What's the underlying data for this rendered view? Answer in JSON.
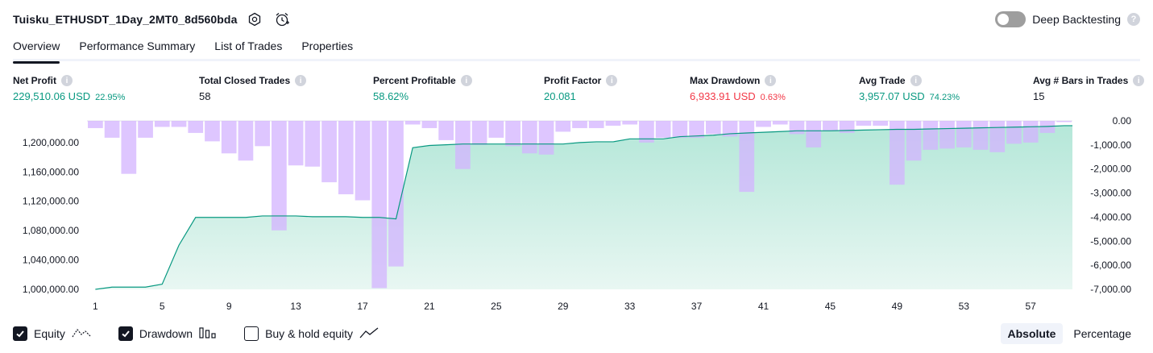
{
  "header": {
    "strategy_name": "Tuisku_ETHUSDT_1Day_2MT0_8d560bda",
    "settings_icon": "settings-icon",
    "alert_icon": "alarm-clock-icon",
    "deep_backtesting_label": "Deep Backtesting",
    "deep_backtesting_on": false
  },
  "tabs": [
    {
      "label": "Overview",
      "active": true
    },
    {
      "label": "Performance Summary",
      "active": false
    },
    {
      "label": "List of Trades",
      "active": false
    },
    {
      "label": "Properties",
      "active": false
    }
  ],
  "metrics": {
    "net_profit": {
      "label": "Net Profit",
      "value": "229,510.06 USD",
      "pct": "22.95%"
    },
    "total_closed_trades": {
      "label": "Total Closed Trades",
      "value": "58"
    },
    "percent_profitable": {
      "label": "Percent Profitable",
      "value": "58.62%"
    },
    "profit_factor": {
      "label": "Profit Factor",
      "value": "20.081"
    },
    "max_drawdown": {
      "label": "Max Drawdown",
      "value": "6,933.91 USD",
      "pct": "0.63%"
    },
    "avg_trade": {
      "label": "Avg Trade",
      "value": "3,957.07 USD",
      "pct": "74.23%"
    },
    "avg_bars": {
      "label": "Avg # Bars in Trades",
      "value": "15"
    }
  },
  "chart_data": {
    "type": "area",
    "x_ticks": [
      1,
      5,
      9,
      13,
      17,
      21,
      25,
      29,
      33,
      37,
      41,
      45,
      49,
      53,
      57
    ],
    "left_axis": {
      "ticks": [
        "1,200,000.00",
        "1,160,000.00",
        "1,120,000.00",
        "1,080,000.00",
        "1,040,000.00",
        "1,000,000.00"
      ],
      "tick_values": [
        1200000,
        1160000,
        1120000,
        1080000,
        1040000,
        1000000
      ],
      "range": [
        1000000,
        1229510
      ]
    },
    "right_axis": {
      "ticks": [
        "0.00",
        "-1,000.00",
        "-2,000.00",
        "-3,000.00",
        "-4,000.00",
        "-5,000.00",
        "-6,000.00",
        "-7,000.00"
      ],
      "tick_values": [
        0,
        -1000,
        -2000,
        -3000,
        -4000,
        -5000,
        -6000,
        -7000
      ],
      "range": [
        -7000,
        0
      ]
    },
    "series": [
      {
        "name": "Equity",
        "color": "#089981",
        "values": [
          1000000,
          1003000,
          1003000,
          1003000,
          1007000,
          1060000,
          1098000,
          1098000,
          1098000,
          1098000,
          1100000,
          1100000,
          1100000,
          1099000,
          1099000,
          1099000,
          1098000,
          1098000,
          1096000,
          1193000,
          1196000,
          1197000,
          1198000,
          1198000,
          1198000,
          1198000,
          1198000,
          1198000,
          1198000,
          1200000,
          1201000,
          1201000,
          1205000,
          1205000,
          1205000,
          1208000,
          1209000,
          1210000,
          1212000,
          1213000,
          1214000,
          1215000,
          1216000,
          1216000,
          1216000,
          1216500,
          1217000,
          1217500,
          1218000,
          1218000,
          1218500,
          1219000,
          1219500,
          1220000,
          1220500,
          1221000,
          1221500,
          1222000,
          1223000
        ]
      },
      {
        "name": "Drawdown",
        "color": "#d9b3ff",
        "values": [
          -300,
          -700,
          -2200,
          -700,
          -250,
          -250,
          -500,
          -850,
          -1350,
          -1650,
          -1050,
          -4550,
          -1850,
          -1900,
          -2550,
          -3050,
          -3300,
          -6950,
          -6050,
          -150,
          -300,
          -800,
          -2000,
          -1000,
          -700,
          -1050,
          -1350,
          -1400,
          -450,
          -300,
          -300,
          -200,
          -150,
          -900,
          -700,
          -700,
          -700,
          -550,
          -650,
          -2950,
          -250,
          -150,
          -550,
          -1100,
          -400,
          -500,
          -200,
          -200,
          -2650,
          -1650,
          -1200,
          -1150,
          -1100,
          -1200,
          -1300,
          -950,
          -900,
          -500,
          -50
        ]
      }
    ],
    "legend": [
      {
        "label": "Equity",
        "checked": true,
        "icon": "equity-line-icon"
      },
      {
        "label": "Drawdown",
        "checked": true,
        "icon": "drawdown-bars-icon"
      },
      {
        "label": "Buy & hold equity",
        "checked": false,
        "icon": "buy-hold-line-icon"
      }
    ],
    "scale_modes": [
      {
        "label": "Absolute",
        "active": true
      },
      {
        "label": "Percentage",
        "active": false
      }
    ]
  }
}
